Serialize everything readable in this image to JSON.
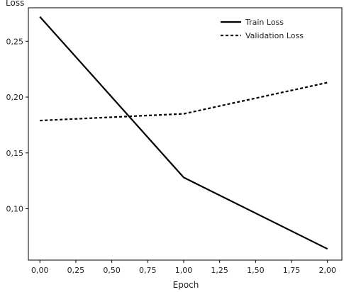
{
  "chart_data": {
    "type": "line",
    "xlabel": "Epoch",
    "ylabel": "Loss",
    "xlim": [
      -0.08,
      2.1
    ],
    "ylim": [
      0.054,
      0.28
    ],
    "x_ticks": [
      "0,00",
      "0,25",
      "0,50",
      "0,75",
      "1,00",
      "1,25",
      "1,50",
      "1,75",
      "2,00"
    ],
    "x_tick_values": [
      0,
      0.25,
      0.5,
      0.75,
      1.0,
      1.25,
      1.5,
      1.75,
      2.0
    ],
    "y_ticks": [
      "0,10",
      "0,15",
      "0,20",
      "0,25"
    ],
    "y_tick_values": [
      0.1,
      0.15,
      0.2,
      0.25
    ],
    "grid": false,
    "legend_position": "top-right",
    "x": [
      0,
      1,
      2
    ],
    "series": [
      {
        "name": "Train Loss",
        "values": [
          0.272,
          0.128,
          0.064
        ],
        "style": "solid",
        "color": "#000000"
      },
      {
        "name": "Validation Loss",
        "values": [
          0.179,
          0.185,
          0.213
        ],
        "style": "dashed",
        "color": "#000000"
      }
    ]
  }
}
